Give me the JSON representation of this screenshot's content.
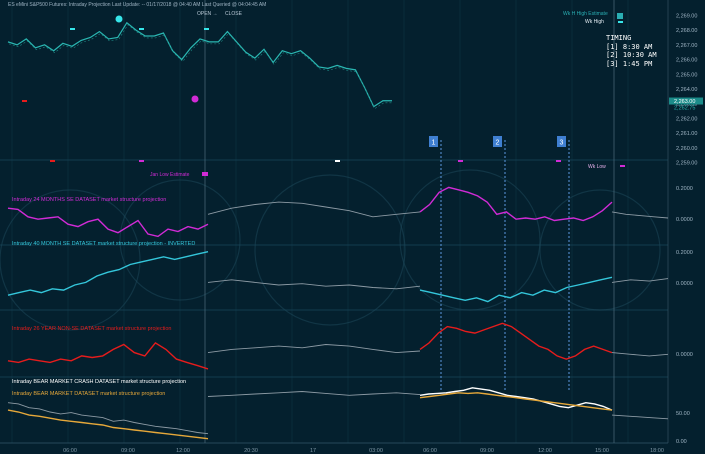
{
  "header": {
    "title": "ES eMini S&P500 Futures:  Intraday Projection  Last Update:  -- 01/17/2018 @ 04:40 AM  Last Queried @ 04:04:45 AM",
    "open_label": "OPEN →",
    "close_label": "CLOSE"
  },
  "timing": {
    "title": "TIMING",
    "items": [
      "[1] 8:30 AM",
      "[2] 10:30 AM",
      "[3] 1:45 PM"
    ]
  },
  "labels": {
    "wk_high": "Wk High",
    "wk_high_estimate": "Wk H High Estimate",
    "jan_low": "Jan Low Estimate",
    "wk_low": "Wk Low"
  },
  "markers": [
    "1",
    "2",
    "3"
  ],
  "colors": {
    "background": "#04202e",
    "price": "#2ab7b2",
    "magenta": "#d12bd6",
    "cyan": "#34c6da",
    "red": "#e61c1c",
    "white": "#ffffff",
    "orange": "#e6a83a",
    "grey": "#8c9aa4",
    "marker_blue": "#3f7fd1"
  },
  "chart_data": {
    "type": "line",
    "x_ticks": [
      "06:00",
      "09:00",
      "12:00",
      "20:30",
      "17",
      "03:00",
      "06:00",
      "09:00",
      "12:00",
      "15:00",
      "18:00"
    ],
    "price_axis": {
      "ticks": [
        "2,269.00",
        "2,268.00",
        "2,267.00",
        "2,266.00",
        "2,265.00",
        "2,264.00",
        "2,263.00",
        "2,262.00",
        "2,261.00",
        "2,260.00",
        "2,259.00"
      ],
      "current": "2,263.00",
      "current2": "2,262.75",
      "ylim": [
        2258.5,
        2269.5
      ]
    },
    "price": [
      2267.2,
      2267.0,
      2267.4,
      2266.8,
      2267.0,
      2266.6,
      2267.1,
      2266.9,
      2267.3,
      2267.5,
      2267.9,
      2267.4,
      2267.5,
      2268.5,
      2268.0,
      2267.6,
      2267.6,
      2267.8,
      2266.6,
      2266.0,
      2266.8,
      2267.4,
      2267.2,
      2267.2,
      2267.9,
      2267.2,
      2266.5,
      2266.1,
      2266.7,
      2265.8,
      2266.6,
      2266.4,
      2266.6,
      2266.1,
      2265.5,
      2265.4,
      2265.6,
      2265.4,
      2265.3,
      2264.1,
      2262.8,
      2263.2,
      2263.2
    ],
    "panels": [
      {
        "title": "Intraday 24 MONTHS SE DATASET market structure projection",
        "axis": [
          "0.2000",
          "0.0000"
        ],
        "series": [
          {
            "color": "magenta",
            "x_start": 0,
            "x_end": 0.5,
            "values": [
              0.05,
              0.04,
              -0.02,
              -0.04,
              -0.03,
              -0.02,
              -0.08,
              -0.1,
              -0.06,
              -0.04,
              -0.12,
              -0.15,
              -0.1,
              -0.05,
              -0.16,
              -0.18,
              -0.12,
              -0.14,
              -0.1,
              -0.12,
              -0.08
            ]
          },
          {
            "color": "grey",
            "x_start": 0.5,
            "x_end": 0.7,
            "values": [
              0.0,
              0.05,
              0.08,
              0.1,
              0.09,
              0.06,
              0.03,
              -0.02,
              0.0,
              0.02
            ]
          },
          {
            "color": "magenta",
            "x_start": 0.7,
            "x_end": 1.0,
            "values": [
              0.02,
              0.08,
              0.18,
              0.22,
              0.2,
              0.18,
              0.15,
              0.1,
              0.0,
              0.02,
              -0.04,
              -0.03,
              -0.04,
              -0.02,
              -0.05,
              -0.04,
              -0.03,
              -0.05,
              -0.02,
              0.03,
              0.1
            ]
          },
          {
            "color": "grey",
            "x_start": 1.0,
            "x_end": 1.1,
            "values": [
              0.02,
              0.0,
              -0.01,
              -0.02,
              -0.03
            ]
          }
        ],
        "ylim": [
          -0.25,
          0.28
        ]
      },
      {
        "title": "Intraday 40 MONTH SE DATASET market structure projection - INVERTED",
        "axis": [
          "0.2000",
          "0.0000"
        ],
        "series": [
          {
            "color": "cyan",
            "x_start": 0,
            "x_end": 0.5,
            "values": [
              -0.1,
              -0.08,
              -0.06,
              -0.08,
              -0.05,
              -0.06,
              -0.02,
              0.0,
              0.05,
              0.08,
              0.1,
              0.14,
              0.16,
              0.18,
              0.2,
              0.18,
              0.2,
              0.22,
              0.24
            ]
          },
          {
            "color": "grey",
            "x_start": 0.5,
            "x_end": 0.7,
            "values": [
              0.0,
              0.02,
              0.0,
              -0.02,
              -0.01,
              -0.03,
              -0.02,
              -0.04,
              -0.05,
              -0.03
            ]
          },
          {
            "color": "cyan",
            "x_start": 0.7,
            "x_end": 1.0,
            "values": [
              -0.06,
              -0.08,
              -0.1,
              -0.12,
              -0.14,
              -0.12,
              -0.15,
              -0.1,
              -0.12,
              -0.08,
              -0.1,
              -0.06,
              -0.08,
              -0.04,
              -0.02,
              0.0,
              0.02,
              0.04
            ]
          },
          {
            "color": "grey",
            "x_start": 1.0,
            "x_end": 1.1,
            "values": [
              0.0,
              0.02,
              0.01,
              0.03
            ]
          }
        ],
        "ylim": [
          -0.2,
          0.3
        ]
      },
      {
        "title": "Intraday 26 YEAR NON-SE DATASET market structure  projection",
        "axis": [
          "0.0000"
        ],
        "series": [
          {
            "color": "red",
            "x_start": 0,
            "x_end": 0.5,
            "values": [
              -0.05,
              -0.06,
              -0.04,
              -0.05,
              -0.06,
              -0.04,
              -0.05,
              -0.02,
              -0.03,
              -0.02,
              0.02,
              0.05,
              0.0,
              -0.02,
              0.06,
              0.02,
              -0.04,
              -0.06,
              -0.08,
              -0.1
            ]
          },
          {
            "color": "grey",
            "x_start": 0.5,
            "x_end": 0.7,
            "values": [
              0.0,
              0.02,
              0.03,
              0.04,
              0.03,
              0.05,
              0.04,
              0.02,
              0.0,
              0.01
            ]
          },
          {
            "color": "red",
            "x_start": 0.7,
            "x_end": 1.0,
            "values": [
              0.02,
              0.06,
              0.12,
              0.16,
              0.15,
              0.13,
              0.12,
              0.14,
              0.16,
              0.18,
              0.16,
              0.12,
              0.08,
              0.04,
              0.02,
              -0.02,
              -0.04,
              -0.02,
              0.02,
              0.04,
              0.02,
              0.0
            ]
          },
          {
            "color": "grey",
            "x_start": 1.0,
            "x_end": 1.1,
            "values": [
              0.0,
              -0.01,
              -0.02,
              -0.01
            ]
          }
        ],
        "ylim": [
          -0.15,
          0.25
        ]
      },
      {
        "title": "Intraday BEAR MARKET CRASH  DATASET  market structure projection",
        "title2": "Intraday BEAR MARKET DATASET  market structure projection",
        "axis": [
          "50.00",
          "0.00"
        ],
        "series": [
          {
            "color": "grey",
            "x_start": 0,
            "x_end": 0.5,
            "values": [
              60,
              58,
              52,
              50,
              45,
              42,
              44,
              40,
              38,
              36,
              30,
              32,
              28,
              25,
              22,
              20,
              18,
              15,
              12,
              10
            ]
          },
          {
            "color": "orange",
            "x_start": 0,
            "x_end": 0.5,
            "values": [
              48,
              45,
              40,
              38,
              35,
              32,
              30,
              28,
              26,
              24,
              20,
              18,
              16,
              14,
              12,
              10,
              8,
              6,
              4,
              2
            ]
          },
          {
            "color": "grey",
            "x_start": 0.5,
            "x_end": 0.7,
            "values": [
              70,
              72,
              74,
              76,
              78,
              75,
              72,
              74,
              76,
              73
            ]
          },
          {
            "color": "white",
            "x_start": 0.7,
            "x_end": 1.0,
            "values": [
              72,
              74,
              75,
              76,
              78,
              80,
              84,
              82,
              80,
              76,
              72,
              70,
              68,
              66,
              62,
              58,
              54,
              52,
              56,
              60,
              58,
              54,
              48
            ]
          },
          {
            "color": "orange",
            "x_start": 0.7,
            "x_end": 1.0,
            "values": [
              68,
              70,
              72,
              74,
              76,
              75,
              76,
              74,
              72,
              70,
              68,
              66,
              64,
              62,
              60,
              58,
              56,
              54,
              52,
              50,
              48
            ]
          },
          {
            "color": "grey",
            "x_start": 1.0,
            "x_end": 1.1,
            "values": [
              40,
              38,
              36,
              34
            ]
          }
        ],
        "ylim": [
          -5,
          95
        ]
      }
    ]
  }
}
